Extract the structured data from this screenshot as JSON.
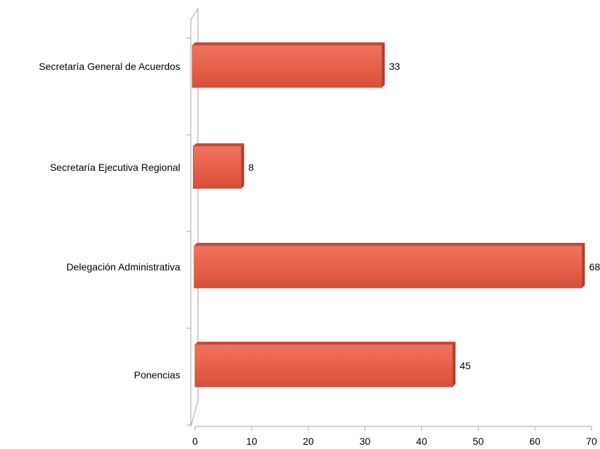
{
  "chart_data": {
    "type": "bar",
    "orientation": "horizontal",
    "style": "3d",
    "categories": [
      "Secretaría General de Acuerdos",
      "Secretaría Ejecutiva Regional",
      "Delegación Administrativa",
      "Ponencias"
    ],
    "values": [
      33,
      8,
      68,
      45
    ],
    "value_labels": [
      "33",
      "8",
      "68",
      "45"
    ],
    "xlim": [
      0,
      70
    ],
    "x_ticks": [
      "0",
      "10",
      "20",
      "30",
      "40",
      "50",
      "60",
      "70"
    ],
    "title": "",
    "xlabel": "",
    "ylabel": "",
    "grid": false,
    "legend": "none",
    "colors": {
      "bar_front": "#e8604a",
      "bar_top": "#c94a36",
      "bar_side": "#b33c2b",
      "axis": "#a6a6a6"
    }
  }
}
